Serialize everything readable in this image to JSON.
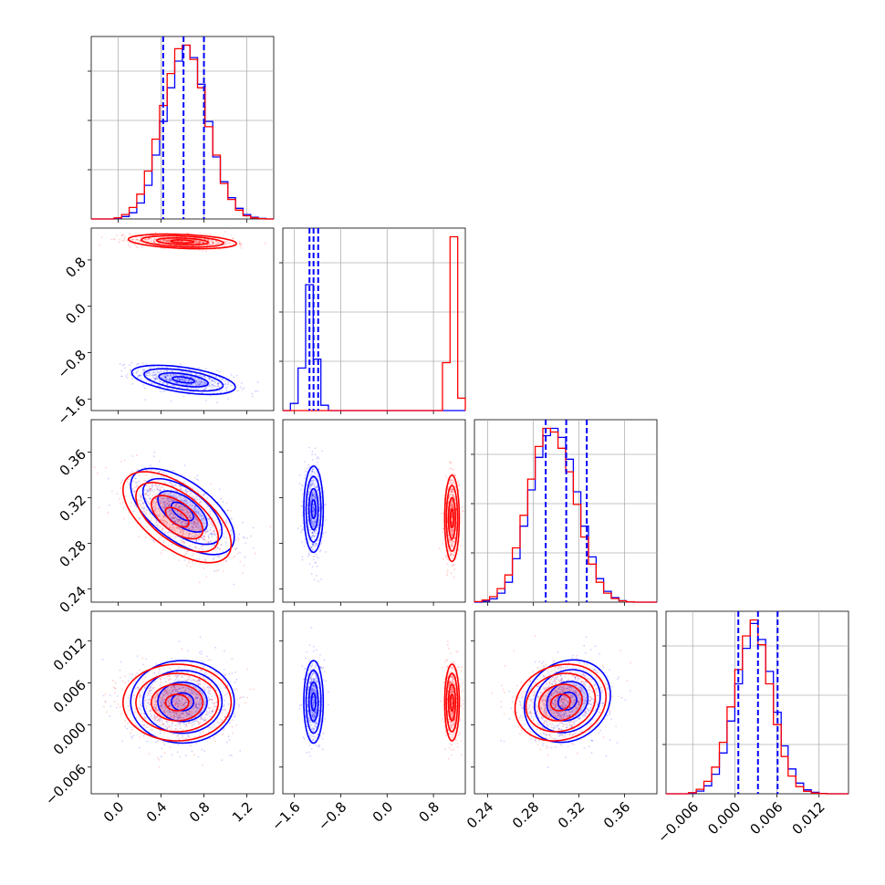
{
  "chart_data": {
    "type": "corner",
    "title": "",
    "series": [
      {
        "name": "",
        "color": "#0000ff"
      },
      {
        "name": "",
        "color": "#ff0000"
      }
    ],
    "grid": true,
    "legend": "none",
    "variables": [
      {
        "range": [
          -0.25,
          1.45
        ],
        "ticks": [
          0.0,
          0.4,
          0.8,
          1.2
        ],
        "tick_labels": [
          "0.0",
          "0.4",
          "0.8",
          "1.2"
        ]
      },
      {
        "range": [
          -1.8,
          1.35
        ],
        "ticks": [
          -1.6,
          -0.8,
          0.0,
          0.8
        ],
        "tick_labels": [
          "−1.6",
          "−0.8",
          "0.0",
          "0.8"
        ]
      },
      {
        "range": [
          0.2285,
          0.3885
        ],
        "ticks": [
          0.24,
          0.28,
          0.32,
          0.36
        ],
        "tick_labels": [
          "0.24",
          "0.28",
          "0.32",
          "0.36"
        ]
      },
      {
        "range": [
          -0.0098,
          0.0162
        ],
        "ticks": [
          -0.006,
          0.0,
          0.006,
          0.012
        ],
        "tick_labels": [
          "−0.006",
          "0.000",
          "0.006",
          "0.012"
        ]
      }
    ],
    "quantile_lines": [
      {
        "variable": 0,
        "values": [
          0.42,
          0.61,
          0.8
        ]
      },
      {
        "variable": 1,
        "values": [
          -1.34,
          -1.27,
          -1.19
        ]
      },
      {
        "variable": 2,
        "values": [
          0.291,
          0.309,
          0.327
        ]
      },
      {
        "variable": 3,
        "values": [
          0.0005,
          0.0033,
          0.0061
        ]
      }
    ],
    "histograms": [
      {
        "variable": 0,
        "bins": [
          -0.25,
          -0.1793,
          -0.1085,
          -0.0378,
          0.0329,
          0.1037,
          0.1744,
          0.2452,
          0.3159,
          0.3867,
          0.4574,
          0.5281,
          0.5989,
          0.6696,
          0.7404,
          0.8111,
          0.8819,
          0.9526,
          1.0233,
          1.0941,
          1.1648,
          1.2356,
          1.3063,
          1.3771,
          1.45
        ],
        "blue": [
          0,
          0,
          0,
          0.003,
          0.014,
          0.035,
          0.09,
          0.19,
          0.36,
          0.55,
          0.74,
          0.89,
          0.98,
          0.91,
          0.76,
          0.55,
          0.35,
          0.21,
          0.12,
          0.06,
          0.025,
          0.01,
          0.003,
          0
        ],
        "red": [
          0,
          0,
          0,
          0.006,
          0.025,
          0.065,
          0.14,
          0.27,
          0.45,
          0.64,
          0.82,
          0.96,
          0.98,
          0.9,
          0.74,
          0.52,
          0.36,
          0.2,
          0.11,
          0.05,
          0.018,
          0.006,
          0.002,
          0
        ]
      },
      {
        "variable": 1,
        "bins": [
          -1.8,
          -1.6688,
          -1.5375,
          -1.4062,
          -1.275,
          -1.1438,
          -1.0125,
          -0.8812,
          -0.75,
          -0.6188,
          -0.4875,
          -0.3562,
          -0.225,
          -0.0938,
          0.0375,
          0.1688,
          0.3,
          0.4312,
          0.5625,
          0.6938,
          0.825,
          0.9562,
          1.0875,
          1.2188,
          1.35
        ],
        "blue": [
          0,
          0.04,
          0.24,
          0.71,
          0.29,
          0.03,
          0,
          0,
          0,
          0,
          0,
          0,
          0,
          0,
          0,
          0,
          0,
          0,
          0,
          0,
          0,
          0,
          0,
          0
        ],
        "red": [
          0,
          0,
          0,
          0,
          0,
          0,
          0,
          0,
          0,
          0,
          0,
          0,
          0,
          0,
          0,
          0,
          0,
          0,
          0,
          0,
          0,
          0.27,
          0.98,
          0.07
        ]
      },
      {
        "variable": 2,
        "bins": [
          0.2285,
          0.2352,
          0.2418,
          0.2485,
          0.2552,
          0.2618,
          0.2685,
          0.2752,
          0.2818,
          0.2885,
          0.2952,
          0.3018,
          0.3085,
          0.3152,
          0.3218,
          0.3285,
          0.3352,
          0.3418,
          0.3485,
          0.3552,
          0.3618,
          0.3685,
          0.3752,
          0.3818,
          0.3885
        ],
        "blue": [
          0,
          0.006,
          0.018,
          0.05,
          0.11,
          0.24,
          0.42,
          0.62,
          0.8,
          0.92,
          0.96,
          0.91,
          0.79,
          0.61,
          0.42,
          0.25,
          0.13,
          0.06,
          0.025,
          0.008,
          0.002,
          0,
          0,
          0
        ],
        "red": [
          0.003,
          0.012,
          0.03,
          0.075,
          0.15,
          0.3,
          0.48,
          0.68,
          0.86,
          0.96,
          0.94,
          0.85,
          0.72,
          0.54,
          0.36,
          0.21,
          0.11,
          0.05,
          0.02,
          0.007,
          0.002,
          0,
          0,
          0
        ]
      },
      {
        "variable": 3,
        "bins": [
          -0.0098,
          -0.0087,
          -0.0076,
          -0.0066,
          -0.0055,
          -0.0044,
          -0.0033,
          -0.0022,
          -0.0011,
          0.0,
          0.0011,
          0.0022,
          0.0033,
          0.0044,
          0.0055,
          0.0066,
          0.0076,
          0.0087,
          0.0098,
          0.0109,
          0.012,
          0.0131,
          0.0142,
          0.0152,
          0.0162
        ],
        "blue": [
          0,
          0,
          0,
          0.003,
          0.015,
          0.045,
          0.11,
          0.23,
          0.41,
          0.62,
          0.82,
          0.96,
          0.87,
          0.69,
          0.46,
          0.27,
          0.14,
          0.06,
          0.022,
          0.008,
          0.002,
          0,
          0,
          0
        ],
        "red": [
          0,
          0,
          0,
          0.006,
          0.025,
          0.07,
          0.15,
          0.29,
          0.49,
          0.7,
          0.89,
          0.98,
          0.84,
          0.62,
          0.39,
          0.21,
          0.1,
          0.04,
          0.014,
          0.004,
          0.001,
          0,
          0,
          0
        ]
      }
    ],
    "pairs": [
      {
        "row": 1,
        "col": 0,
        "scatter": true,
        "blue": {
          "mean": [
            0.61,
            -1.27
          ],
          "sd": [
            0.23,
            0.12
          ],
          "corr": -0.5
        },
        "red": {
          "mean": [
            0.6,
            1.12
          ],
          "sd": [
            0.24,
            0.06
          ],
          "corr": -0.3
        }
      },
      {
        "row": 2,
        "col": 0,
        "scatter": true,
        "blue": {
          "mean": [
            0.6,
            0.308
          ],
          "sd": [
            0.23,
            0.018
          ],
          "corr": -0.6
        },
        "red": {
          "mean": [
            0.55,
            0.303
          ],
          "sd": [
            0.24,
            0.019
          ],
          "corr": -0.6
        }
      },
      {
        "row": 2,
        "col": 1,
        "scatter": true,
        "blue": {
          "mean": [
            -1.27,
            0.31
          ],
          "sd": [
            0.08,
            0.018
          ],
          "corr": 0.0
        },
        "red": {
          "mean": [
            1.12,
            0.302
          ],
          "sd": [
            0.06,
            0.018
          ],
          "corr": 0.0
        }
      },
      {
        "row": 3,
        "col": 0,
        "scatter": true,
        "blue": {
          "mean": [
            0.6,
            0.0033
          ],
          "sd": [
            0.23,
            0.0028
          ],
          "corr": 0.0
        },
        "red": {
          "mean": [
            0.55,
            0.0032
          ],
          "sd": [
            0.24,
            0.0026
          ],
          "corr": 0.0
        }
      },
      {
        "row": 3,
        "col": 1,
        "scatter": true,
        "blue": {
          "mean": [
            -1.27,
            0.0033
          ],
          "sd": [
            0.08,
            0.0028
          ],
          "corr": 0.0
        },
        "red": {
          "mean": [
            1.12,
            0.0032
          ],
          "sd": [
            0.06,
            0.0026
          ],
          "corr": 0.0
        }
      },
      {
        "row": 3,
        "col": 2,
        "scatter": true,
        "blue": {
          "mean": [
            0.31,
            0.0034
          ],
          "sd": [
            0.018,
            0.0028
          ],
          "corr": 0.15
        },
        "red": {
          "mean": [
            0.304,
            0.0032
          ],
          "sd": [
            0.019,
            0.0026
          ],
          "corr": 0.15
        }
      }
    ]
  }
}
